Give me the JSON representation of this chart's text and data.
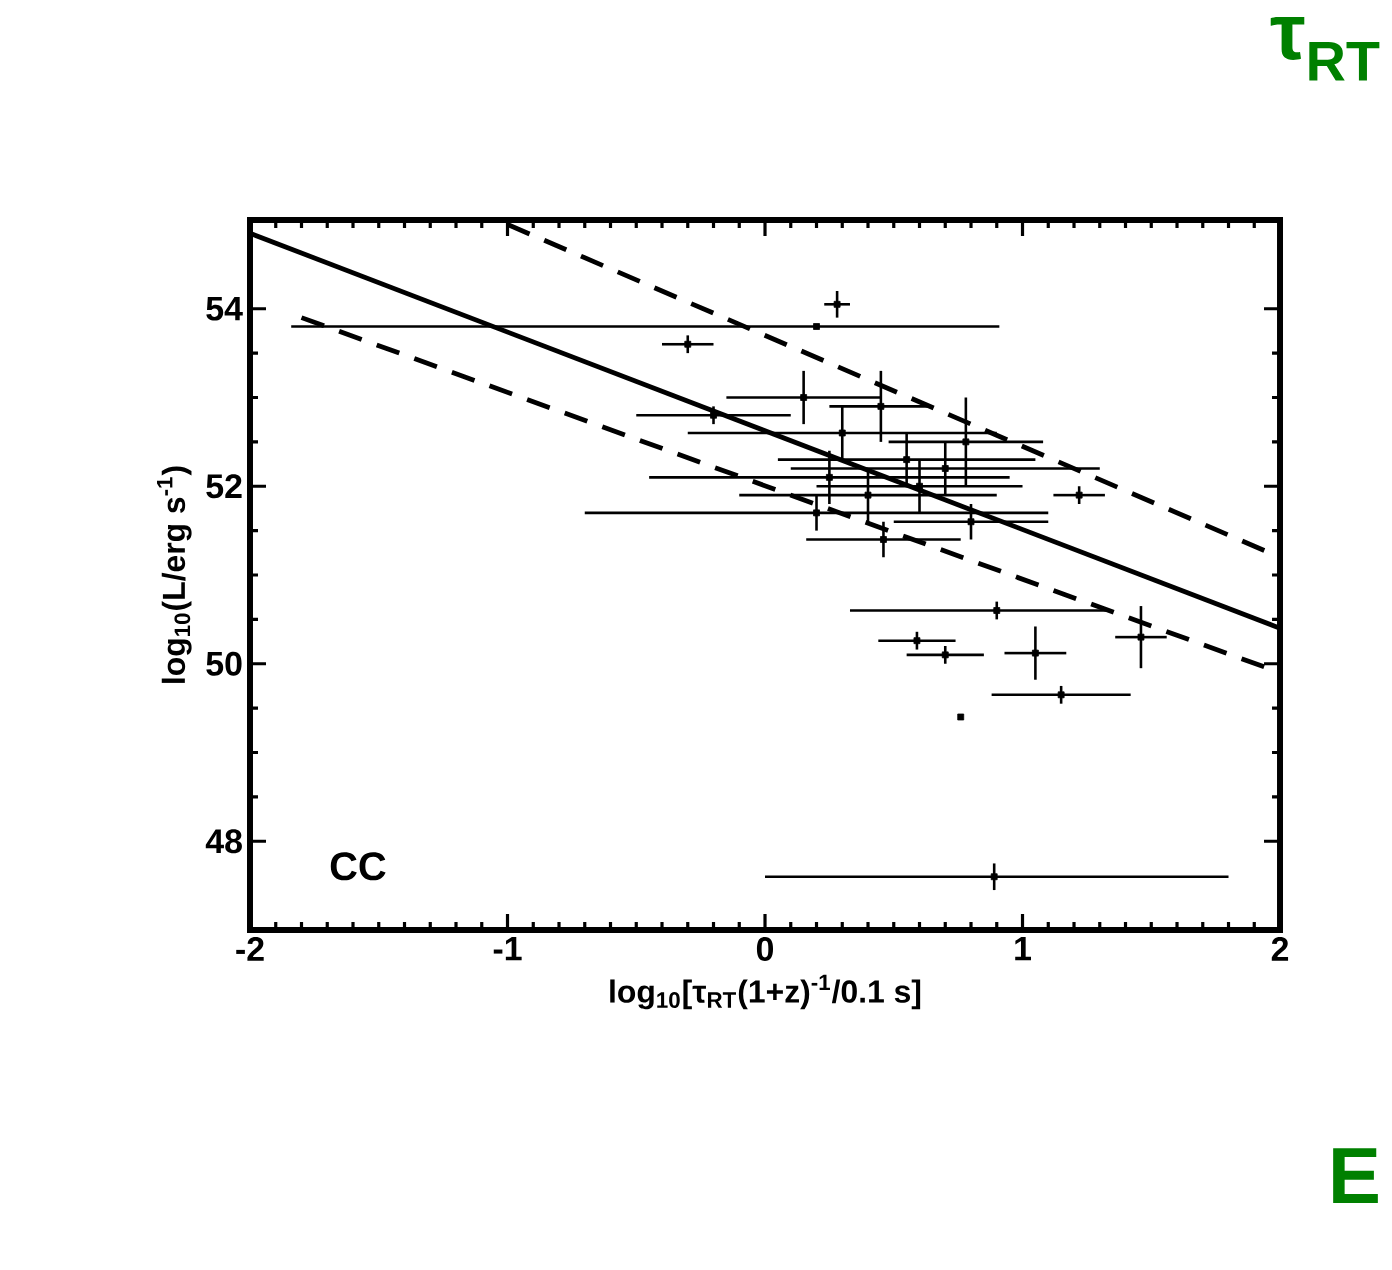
{
  "chart_data": {
    "type": "scatter",
    "xlabel": "log$_{10}$[τ$_{RT}$(1+z)$^{-1}$/0.1 s]",
    "ylabel": "log$_{10}$(L/erg s$^{-1}$)",
    "annotations": [
      "CC",
      "τ$_{RT}$",
      "E"
    ],
    "xlim": [
      -2,
      2
    ],
    "ylim": [
      47,
      55
    ],
    "xticks": [
      -2,
      -1,
      0,
      1,
      2
    ],
    "yticks": [
      48,
      50,
      52,
      54
    ],
    "grid": false,
    "series": [
      {
        "color": "#000000",
        "marker": "square",
        "x": [
          0.2,
          -0.3,
          0.28,
          0.15,
          0.45,
          0.3,
          0.55,
          0.25,
          0.7,
          0.4,
          0.6,
          0.2,
          0.8,
          0.46,
          0.78,
          -0.2,
          1.22,
          0.9,
          1.05,
          1.46,
          1.15,
          0.76,
          0.89,
          0.59,
          0.7
        ],
        "values": [
          53.8,
          53.6,
          54.05,
          53.0,
          52.9,
          52.6,
          52.3,
          52.1,
          52.2,
          51.9,
          52.0,
          51.7,
          51.6,
          51.4,
          52.5,
          52.8,
          51.9,
          50.6,
          50.12,
          50.3,
          49.65,
          49.4,
          47.6,
          50.26,
          50.1
        ],
        "errors": [
          null,
          0.1,
          0.15,
          0.3,
          0.4,
          0.3,
          0.3,
          0.3,
          0.3,
          0.3,
          0.3,
          0.2,
          0.2,
          0.2,
          0.5,
          0.1,
          0.1,
          0.1,
          0.3,
          0.35,
          0.1,
          null,
          0.15,
          0.1,
          0.1
        ],
        "xerrors": [
          [
            -1.84,
            0.91
          ],
          0.1,
          0.05,
          0.3,
          0.2,
          0.6,
          0.5,
          0.7,
          0.6,
          0.5,
          0.4,
          0.9,
          0.3,
          0.3,
          0.3,
          0.3,
          0.1,
          [
            0.33,
            1.34
          ],
          0.12,
          0.1,
          0.27,
          null,
          [
            0.0,
            1.8
          ],
          0.15,
          0.15
        ]
      },
      {
        "type": "line",
        "color": "#000000",
        "line_style": "solid",
        "x": [
          -2,
          2
        ],
        "values": [
          54.85,
          50.4
        ]
      },
      {
        "type": "line",
        "color": "#000000",
        "line_style": "dashed",
        "x": [
          -1.0,
          2
        ],
        "values": [
          54.95,
          51.2
        ]
      },
      {
        "type": "line",
        "color": "#000000",
        "line_style": "dashed",
        "x": [
          -1.8,
          2
        ],
        "values": [
          53.9,
          49.9
        ]
      }
    ]
  }
}
